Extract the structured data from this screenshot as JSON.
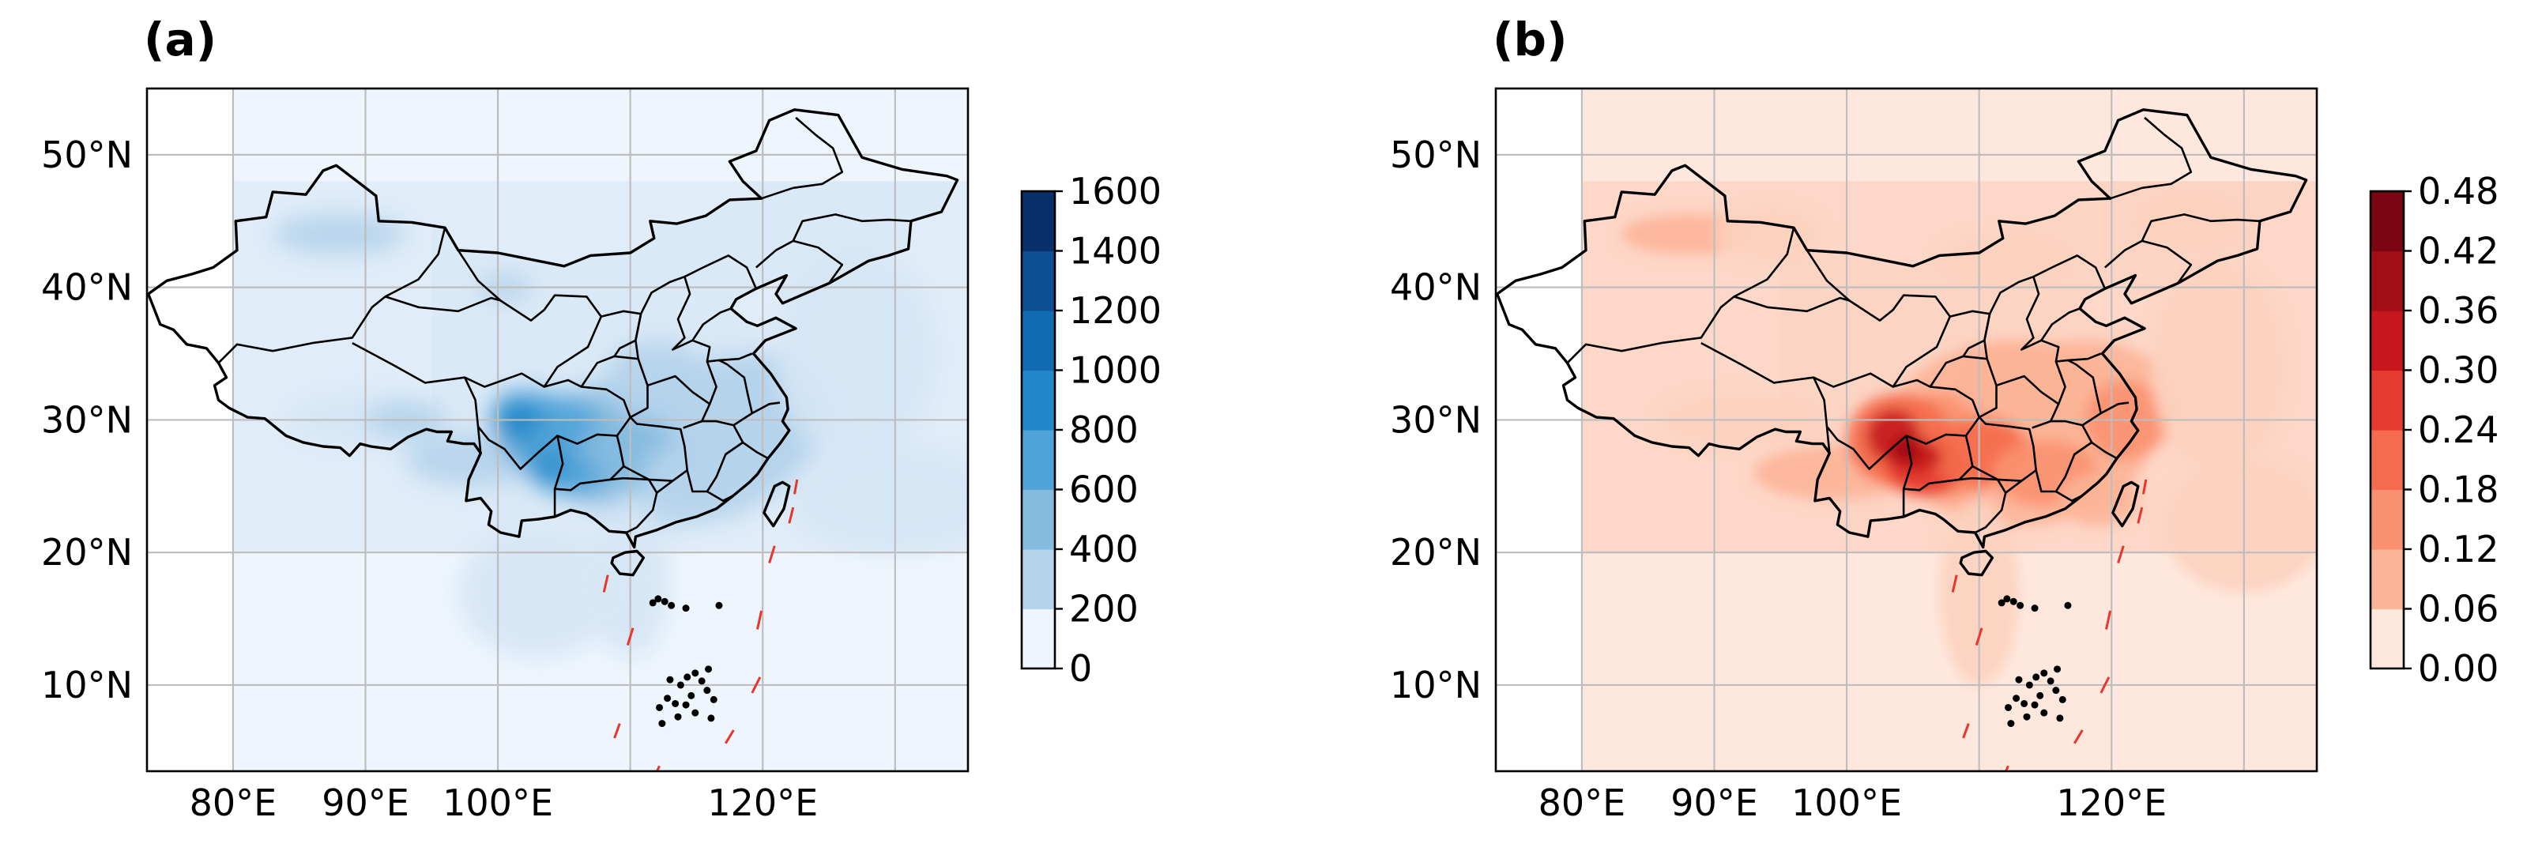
{
  "figure": {
    "panels": [
      {
        "id": "a",
        "label": "(a)",
        "colormap": "Blues",
        "colors": [
          "#eef5fc",
          "#d5e6f5",
          "#b5d3eb",
          "#86bbe0",
          "#4fa3d8",
          "#2388c9",
          "#126bb0",
          "#0c4f93",
          "#08306b"
        ],
        "colorbar_ticks": [
          "0",
          "200",
          "400",
          "600",
          "800",
          "1000",
          "1200",
          "1400",
          "1600"
        ],
        "colorbar_levels": 8
      },
      {
        "id": "b",
        "label": "(b)",
        "colormap": "Reds",
        "colors": [
          "#fee8dd",
          "#fcd2bf",
          "#fcb497",
          "#f99170",
          "#f46b4d",
          "#e53a2f",
          "#c7171c",
          "#a10e16",
          "#7b0510"
        ],
        "colorbar_ticks": [
          "0.00",
          "0.06",
          "0.12",
          "0.18",
          "0.24",
          "0.30",
          "0.36",
          "0.42",
          "0.48"
        ],
        "colorbar_levels": 8
      }
    ],
    "x_tick_labels": [
      "80°E",
      "90°E",
      "100°E",
      "120°E"
    ],
    "x_tick_values": [
      80,
      90,
      100,
      120
    ],
    "y_tick_labels": [
      "50°N",
      "40°N",
      "30°N",
      "20°N",
      "10°N"
    ],
    "y_tick_values": [
      50,
      40,
      30,
      20,
      10
    ],
    "lon_range": [
      73.5,
      135.5
    ],
    "lat_range": [
      3.5,
      55
    ],
    "gridline_lons": [
      80,
      90,
      100,
      110,
      120,
      130
    ],
    "gridline_lats": [
      10,
      20,
      30,
      40,
      50
    ]
  }
}
